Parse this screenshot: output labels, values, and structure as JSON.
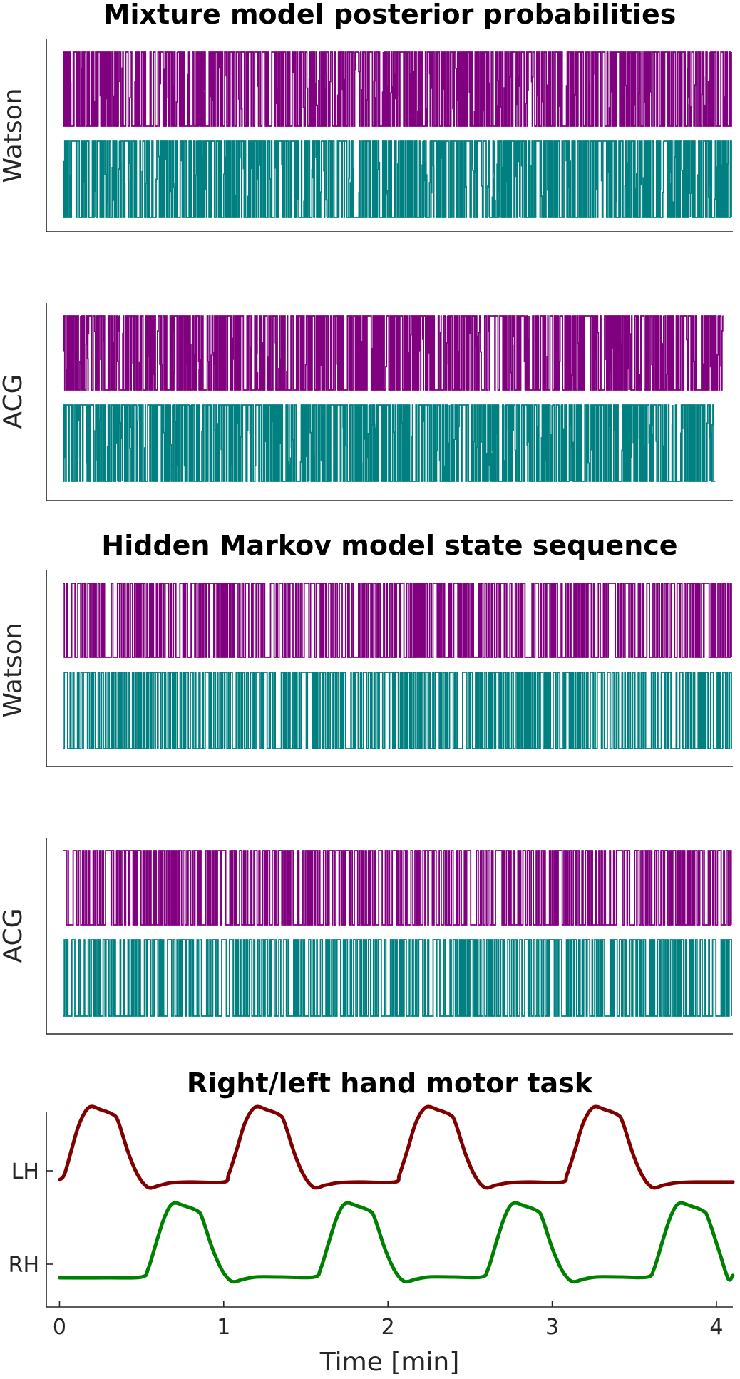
{
  "chart_data": [
    {
      "type": "line",
      "title": "Mixture model posterior probabilities",
      "ylabel": "Watson",
      "x_range_min": [
        0,
        4.1
      ],
      "series": [
        {
          "values_desc": "",
          "color": "#800080",
          "range": [
            0,
            1
          ],
          "transitions": 720,
          "seed": 11
        },
        {
          "values_desc": "",
          "color": "#008080",
          "range": [
            0,
            1
          ],
          "transitions": 720,
          "seed": 12
        }
      ]
    },
    {
      "type": "line",
      "title": "",
      "ylabel": "ACG",
      "x_range_min": [
        0,
        4.1
      ],
      "series": [
        {
          "values_desc": "",
          "color": "#800080",
          "range": [
            0,
            1
          ],
          "transitions": 720,
          "seed": 21
        },
        {
          "values_desc": "",
          "color": "#008080",
          "range": [
            0,
            1
          ],
          "transitions": 720,
          "seed": 22
        }
      ]
    },
    {
      "type": "line",
      "title": "Hidden Markov model state sequence",
      "ylabel": "Watson",
      "x_range_min": [
        0,
        4.1
      ],
      "series": [
        {
          "values_desc": "",
          "color": "#800080",
          "range": [
            0,
            1
          ],
          "transitions": 520,
          "seed": 31
        },
        {
          "values_desc": "",
          "color": "#008080",
          "range": [
            0,
            1
          ],
          "transitions": 520,
          "seed": 32
        }
      ]
    },
    {
      "type": "line",
      "title": "",
      "ylabel": "ACG",
      "x_range_min": [
        0,
        4.1
      ],
      "series": [
        {
          "values_desc": "",
          "color": "#800080",
          "range": [
            0,
            1
          ],
          "transitions": 520,
          "seed": 41
        },
        {
          "values_desc": "",
          "color": "#008080",
          "range": [
            0,
            1
          ],
          "transitions": 520,
          "seed": 42
        }
      ]
    },
    {
      "type": "line",
      "title": "Right/left hand motor task",
      "xlabel": "Time [min]",
      "xlim": [
        -0.08,
        4.1
      ],
      "xticks": [
        0,
        1,
        2,
        3,
        4
      ],
      "xtick_labels": [
        "0",
        "1",
        "2",
        "3",
        "4"
      ],
      "yticks": [
        "LH",
        "RH"
      ],
      "series": [
        {
          "name": "LH",
          "color": "#800000",
          "points": [
            [
              0.0,
              0.05
            ],
            [
              0.03,
              0.12
            ],
            [
              0.07,
              0.42
            ],
            [
              0.12,
              0.78
            ],
            [
              0.18,
              1.0
            ],
            [
              0.25,
              0.97
            ],
            [
              0.33,
              0.9
            ],
            [
              0.36,
              0.8
            ],
            [
              0.42,
              0.4
            ],
            [
              0.48,
              0.1
            ],
            [
              0.54,
              -0.05
            ],
            [
              0.6,
              -0.03
            ],
            [
              0.68,
              0.01
            ],
            [
              0.8,
              0.02
            ],
            [
              1.0,
              0.02
            ],
            [
              1.03,
              0.12
            ],
            [
              1.08,
              0.45
            ],
            [
              1.13,
              0.8
            ],
            [
              1.19,
              1.0
            ],
            [
              1.26,
              0.97
            ],
            [
              1.34,
              0.9
            ],
            [
              1.37,
              0.8
            ],
            [
              1.43,
              0.4
            ],
            [
              1.49,
              0.1
            ],
            [
              1.55,
              -0.05
            ],
            [
              1.62,
              -0.02
            ],
            [
              1.7,
              0.01
            ],
            [
              1.82,
              0.02
            ],
            [
              2.04,
              0.02
            ],
            [
              2.07,
              0.12
            ],
            [
              2.12,
              0.45
            ],
            [
              2.17,
              0.8
            ],
            [
              2.23,
              1.0
            ],
            [
              2.3,
              0.97
            ],
            [
              2.38,
              0.9
            ],
            [
              2.41,
              0.8
            ],
            [
              2.47,
              0.4
            ],
            [
              2.53,
              0.1
            ],
            [
              2.59,
              -0.05
            ],
            [
              2.66,
              -0.02
            ],
            [
              2.74,
              0.01
            ],
            [
              2.86,
              0.02
            ],
            [
              3.06,
              0.02
            ],
            [
              3.09,
              0.12
            ],
            [
              3.14,
              0.45
            ],
            [
              3.19,
              0.8
            ],
            [
              3.25,
              1.0
            ],
            [
              3.32,
              0.97
            ],
            [
              3.4,
              0.9
            ],
            [
              3.43,
              0.8
            ],
            [
              3.49,
              0.4
            ],
            [
              3.55,
              0.1
            ],
            [
              3.61,
              -0.05
            ],
            [
              3.68,
              -0.02
            ],
            [
              3.76,
              0.01
            ],
            [
              3.88,
              0.02
            ],
            [
              4.1,
              0.02
            ]
          ]
        },
        {
          "name": "RH",
          "color": "#008000",
          "points": [
            [
              0.0,
              0.0
            ],
            [
              0.3,
              0.0
            ],
            [
              0.5,
              0.01
            ],
            [
              0.54,
              0.12
            ],
            [
              0.59,
              0.48
            ],
            [
              0.64,
              0.82
            ],
            [
              0.69,
              1.0
            ],
            [
              0.76,
              0.97
            ],
            [
              0.84,
              0.9
            ],
            [
              0.87,
              0.8
            ],
            [
              0.93,
              0.4
            ],
            [
              0.99,
              0.1
            ],
            [
              1.05,
              -0.05
            ],
            [
              1.12,
              -0.02
            ],
            [
              1.2,
              0.01
            ],
            [
              1.35,
              0.01
            ],
            [
              1.55,
              0.01
            ],
            [
              1.59,
              0.12
            ],
            [
              1.64,
              0.48
            ],
            [
              1.69,
              0.82
            ],
            [
              1.74,
              1.0
            ],
            [
              1.81,
              0.97
            ],
            [
              1.89,
              0.9
            ],
            [
              1.92,
              0.8
            ],
            [
              1.98,
              0.4
            ],
            [
              2.04,
              0.1
            ],
            [
              2.1,
              -0.05
            ],
            [
              2.17,
              -0.02
            ],
            [
              2.25,
              0.01
            ],
            [
              2.4,
              0.01
            ],
            [
              2.57,
              0.01
            ],
            [
              2.61,
              0.12
            ],
            [
              2.66,
              0.48
            ],
            [
              2.71,
              0.82
            ],
            [
              2.76,
              1.0
            ],
            [
              2.83,
              0.97
            ],
            [
              2.91,
              0.9
            ],
            [
              2.94,
              0.8
            ],
            [
              3.0,
              0.4
            ],
            [
              3.06,
              0.1
            ],
            [
              3.12,
              -0.05
            ],
            [
              3.19,
              -0.02
            ],
            [
              3.27,
              0.01
            ],
            [
              3.42,
              0.01
            ],
            [
              3.58,
              0.01
            ],
            [
              3.62,
              0.12
            ],
            [
              3.67,
              0.48
            ],
            [
              3.72,
              0.82
            ],
            [
              3.77,
              1.0
            ],
            [
              3.84,
              0.97
            ],
            [
              3.92,
              0.9
            ],
            [
              3.95,
              0.8
            ],
            [
              4.01,
              0.4
            ],
            [
              4.06,
              0.05
            ],
            [
              4.08,
              -0.03
            ],
            [
              4.1,
              0.03
            ]
          ]
        }
      ]
    }
  ]
}
